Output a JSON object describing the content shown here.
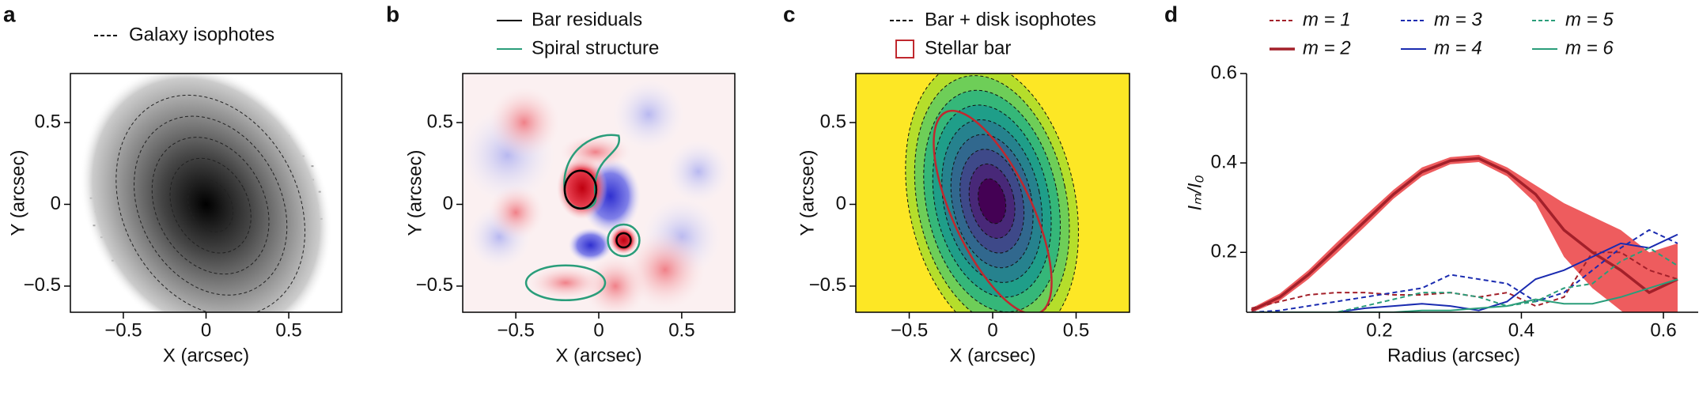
{
  "chart_data": [
    {
      "type": "image",
      "label": "a",
      "xlabel": "X (arcsec)",
      "ylabel": "Y (arcsec)",
      "xlim": [
        -0.82,
        0.82
      ],
      "ylim": [
        -0.66,
        0.8
      ],
      "xticks": [
        {
          "value": -0.5,
          "label": "−0.5"
        },
        0,
        0.5
      ],
      "yticks": [
        {
          "value": -0.5,
          "label": "−0.5"
        },
        0,
        0.5
      ],
      "legend": [
        {
          "label": "Galaxy isophotes",
          "style": "dashed",
          "color": "#000000"
        }
      ]
    },
    {
      "type": "image",
      "label": "b",
      "xlabel": "X (arcsec)",
      "ylabel": "Y (arcsec)",
      "xlim": [
        -0.82,
        0.82
      ],
      "ylim": [
        -0.66,
        0.8
      ],
      "xticks": [
        {
          "value": -0.5,
          "label": "−0.5"
        },
        0,
        0.5
      ],
      "yticks": [
        {
          "value": -0.5,
          "label": "−0.5"
        },
        0,
        0.5
      ],
      "legend": [
        {
          "label": "Bar residuals",
          "style": "solid",
          "color": "#000000"
        },
        {
          "label": "Spiral structure",
          "style": "solid",
          "color": "#2a9d7a"
        }
      ]
    },
    {
      "type": "image",
      "label": "c",
      "xlabel": "X (arcsec)",
      "ylabel": "Y (arcsec)",
      "xlim": [
        -0.82,
        0.82
      ],
      "ylim": [
        -0.66,
        0.8
      ],
      "xticks": [
        {
          "value": -0.5,
          "label": "−0.5"
        },
        0,
        0.5
      ],
      "yticks": [
        {
          "value": -0.5,
          "label": "−0.5"
        },
        0,
        0.5
      ],
      "legend": [
        {
          "label": "Bar + disk isophotes",
          "style": "dashed",
          "color": "#000000"
        },
        {
          "label": "Stellar bar",
          "style": "box",
          "color": "#c0282e"
        }
      ]
    },
    {
      "type": "line",
      "label": "d",
      "xlabel": "Radius (arcsec)",
      "ylabel": "Iₘ/I₀",
      "xlim": [
        0.013,
        0.649
      ],
      "ylim": [
        0.066,
        0.6
      ],
      "xticks": [
        0.2,
        0.4,
        0.6
      ],
      "yticks": [
        0.2,
        0.4,
        0.6
      ],
      "x": [
        0.02,
        0.06,
        0.1,
        0.14,
        0.18,
        0.22,
        0.26,
        0.3,
        0.34,
        0.38,
        0.42,
        0.46,
        0.5,
        0.54,
        0.58,
        0.62
      ],
      "series": [
        {
          "name": "m = 1",
          "color": "#a3202a",
          "dashed": true,
          "values": [
            0.075,
            0.09,
            0.105,
            0.11,
            0.11,
            0.105,
            0.105,
            0.11,
            0.1,
            0.11,
            0.08,
            0.1,
            0.2,
            0.2,
            0.16,
            0.14
          ]
        },
        {
          "name": "m = 2",
          "color": "#a3202a",
          "dashed": false,
          "band_color": "#ec4a4c",
          "values": [
            0.07,
            0.1,
            0.15,
            0.21,
            0.27,
            0.33,
            0.38,
            0.405,
            0.41,
            0.38,
            0.33,
            0.25,
            0.2,
            0.16,
            0.11,
            0.14
          ],
          "errors": [
            0.005,
            0.008,
            0.01,
            0.012,
            0.012,
            0.01,
            0.01,
            0.008,
            0.008,
            0.01,
            0.02,
            0.06,
            0.08,
            0.09,
            0.09,
            0.08
          ]
        },
        {
          "name": "m = 3",
          "color": "#1a2bb0",
          "dashed": true,
          "values": [
            0.066,
            0.07,
            0.08,
            0.09,
            0.1,
            0.11,
            0.12,
            0.15,
            0.14,
            0.13,
            0.09,
            0.11,
            0.16,
            0.21,
            0.25,
            0.22
          ]
        },
        {
          "name": "m = 4",
          "color": "#1a2bb0",
          "dashed": false,
          "values": [
            0.066,
            0.066,
            0.066,
            0.066,
            0.075,
            0.08,
            0.085,
            0.08,
            0.07,
            0.09,
            0.14,
            0.16,
            0.19,
            0.22,
            0.21,
            0.24
          ]
        },
        {
          "name": "m = 5",
          "color": "#2a9d7a",
          "dashed": true,
          "values": [
            0.066,
            0.066,
            0.066,
            0.066,
            0.08,
            0.095,
            0.11,
            0.11,
            0.1,
            0.08,
            0.09,
            0.12,
            0.13,
            0.18,
            0.21,
            0.17
          ]
        },
        {
          "name": "m = 6",
          "color": "#2a9d7a",
          "dashed": false,
          "values": [
            0.066,
            0.066,
            0.066,
            0.066,
            0.066,
            0.066,
            0.07,
            0.07,
            0.075,
            0.08,
            0.095,
            0.085,
            0.085,
            0.1,
            0.12,
            0.14
          ]
        }
      ]
    }
  ]
}
